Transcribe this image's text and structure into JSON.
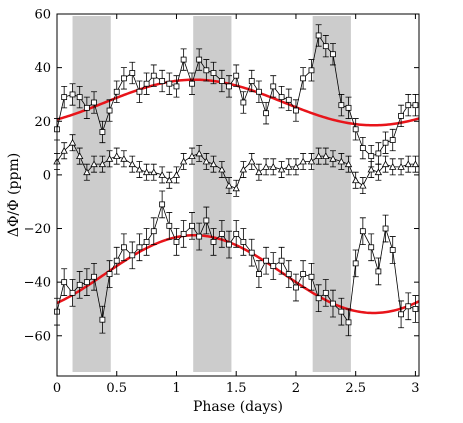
{
  "chart_data": {
    "type": "scatter",
    "title": "",
    "xlabel": "Phase (days)",
    "ylabel": "ΔΦ/Φ (ppm)",
    "xlim": [
      0,
      3.03
    ],
    "ylim": [
      -75,
      60
    ],
    "xticks": [
      0,
      0.5,
      1,
      1.5,
      2,
      2.5,
      3
    ],
    "xtick_labels": [
      "0",
      "0.5",
      "1",
      "1.5",
      "2",
      "2.5",
      "3"
    ],
    "yticks": [
      -60,
      -40,
      -20,
      0,
      20,
      40,
      60
    ],
    "ytick_labels": [
      "−60",
      "−40",
      "−20",
      "0",
      "20",
      "40",
      "60"
    ],
    "grid": false,
    "legend": "none",
    "shaded_bands": [
      [
        0.13,
        0.45
      ],
      [
        1.14,
        1.46
      ],
      [
        2.14,
        2.46
      ]
    ],
    "colors": {
      "band": "#cccccc",
      "model": "#e8141a",
      "data": "#000000"
    },
    "series": [
      {
        "marker": "square",
        "x": [
          0.0,
          0.06,
          0.13,
          0.19,
          0.25,
          0.31,
          0.38,
          0.44,
          0.5,
          0.56,
          0.63,
          0.69,
          0.75,
          0.81,
          0.88,
          0.94,
          1.0,
          1.06,
          1.13,
          1.19,
          1.25,
          1.31,
          1.38,
          1.44,
          1.5,
          1.56,
          1.63,
          1.69,
          1.75,
          1.81,
          1.88,
          1.94,
          2.0,
          2.06,
          2.13,
          2.19,
          2.25,
          2.31,
          2.38,
          2.44,
          2.5,
          2.56,
          2.63,
          2.69,
          2.75,
          2.81,
          2.88,
          2.94,
          3.0
        ],
        "y": [
          17,
          29,
          30,
          29,
          25,
          27,
          16,
          24,
          31,
          36,
          38,
          31,
          34,
          37,
          35,
          34,
          33,
          43,
          34,
          43,
          39,
          38,
          35,
          33,
          37,
          27,
          35,
          31,
          23,
          33,
          29,
          28,
          24,
          36,
          39,
          52,
          48,
          45,
          26,
          25,
          17,
          10,
          7,
          8,
          12,
          13,
          22,
          26,
          26
        ],
        "error": [
          4,
          4,
          4,
          4,
          4,
          4,
          4,
          4,
          4,
          4,
          4,
          4,
          4,
          4,
          4,
          4,
          4,
          4,
          4,
          4,
          4,
          4,
          4,
          4,
          4,
          4,
          4,
          4,
          4,
          4,
          4,
          4,
          4,
          4,
          4,
          4,
          4,
          4,
          4,
          4,
          4,
          4,
          4,
          4,
          4,
          4,
          4,
          4,
          4
        ]
      },
      {
        "marker": "triangle",
        "x": [
          0.0,
          0.06,
          0.13,
          0.19,
          0.25,
          0.31,
          0.38,
          0.44,
          0.5,
          0.56,
          0.63,
          0.69,
          0.75,
          0.81,
          0.88,
          0.94,
          1.0,
          1.06,
          1.13,
          1.19,
          1.25,
          1.31,
          1.38,
          1.44,
          1.5,
          1.56,
          1.63,
          1.69,
          1.75,
          1.81,
          1.88,
          1.94,
          2.0,
          2.06,
          2.13,
          2.19,
          2.25,
          2.31,
          2.38,
          2.44,
          2.5,
          2.56,
          2.63,
          2.69,
          2.75,
          2.81,
          2.88,
          2.94,
          3.0
        ],
        "y": [
          5,
          9,
          12,
          7,
          1,
          4,
          4,
          6,
          7,
          6,
          4,
          2,
          1,
          1,
          0,
          -2,
          0,
          5,
          7,
          8,
          5,
          4,
          2,
          -4,
          -5,
          2,
          5,
          1,
          3,
          3,
          2,
          3,
          3,
          5,
          5,
          7,
          7,
          6,
          5,
          4,
          -2,
          -4,
          2,
          1,
          4,
          3,
          3,
          4,
          4
        ],
        "error": [
          3,
          3,
          3,
          3,
          3,
          3,
          3,
          3,
          3,
          3,
          3,
          3,
          3,
          3,
          3,
          3,
          3,
          3,
          3,
          3,
          3,
          3,
          3,
          3,
          3,
          3,
          3,
          3,
          3,
          3,
          3,
          3,
          3,
          3,
          3,
          3,
          3,
          3,
          3,
          3,
          3,
          3,
          3,
          3,
          3,
          3,
          3,
          3,
          3
        ]
      },
      {
        "marker": "square",
        "x": [
          0.0,
          0.06,
          0.13,
          0.19,
          0.25,
          0.31,
          0.38,
          0.44,
          0.5,
          0.56,
          0.63,
          0.69,
          0.75,
          0.81,
          0.88,
          0.94,
          1.0,
          1.06,
          1.13,
          1.19,
          1.25,
          1.31,
          1.38,
          1.44,
          1.5,
          1.56,
          1.63,
          1.69,
          1.75,
          1.81,
          1.88,
          1.94,
          2.0,
          2.06,
          2.13,
          2.19,
          2.25,
          2.31,
          2.38,
          2.44,
          2.5,
          2.56,
          2.63,
          2.69,
          2.75,
          2.81,
          2.88,
          2.94,
          3.0
        ],
        "y": [
          -51,
          -40,
          -44,
          -41,
          -40,
          -38,
          -54,
          -37,
          -32,
          -27,
          -30,
          -27,
          -25,
          -21,
          -11,
          -19,
          -25,
          -22,
          -19,
          -23,
          -17,
          -25,
          -22,
          -26,
          -22,
          -25,
          -29,
          -37,
          -32,
          -34,
          -32,
          -37,
          -42,
          -37,
          -38,
          -46,
          -44,
          -48,
          -51,
          -55,
          -33,
          -21,
          -27,
          -36,
          -20,
          -28,
          -52,
          -49,
          -50
        ],
        "error": [
          5,
          5,
          5,
          5,
          5,
          5,
          5,
          5,
          5,
          5,
          5,
          5,
          5,
          5,
          5,
          5,
          5,
          5,
          5,
          5,
          5,
          5,
          5,
          5,
          5,
          5,
          5,
          5,
          5,
          5,
          5,
          5,
          5,
          5,
          5,
          5,
          5,
          5,
          5,
          5,
          5,
          5,
          5,
          5,
          5,
          5,
          5,
          5,
          5
        ]
      }
    ],
    "model_curves": [
      {
        "offset": 27,
        "amplitude": 8.5,
        "period": 3.0,
        "phase": 1.15
      },
      {
        "offset": -37,
        "amplitude": 14.5,
        "period": 3.0,
        "phase": 1.15
      }
    ]
  }
}
